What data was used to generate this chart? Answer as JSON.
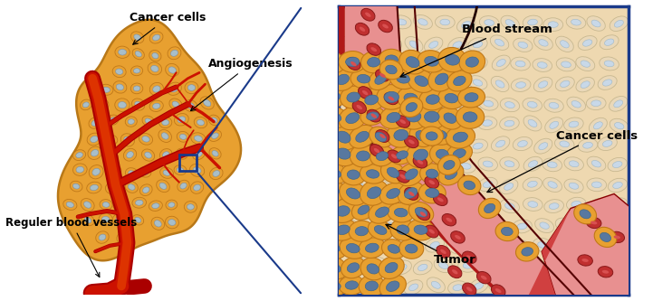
{
  "bg_color": "#ffffff",
  "left_panel": {
    "tumor_color": "#E8A030",
    "tumor_outline": "#B87818",
    "vessel_color_dark": "#AA0000",
    "vessel_color_mid": "#CC1100",
    "vessel_color_light": "#DD3300",
    "cell_outer": "#E8A030",
    "cell_ring": "#C07818",
    "cell_inner": "#A8BEC8",
    "label_cancer_cells": "Cancer cells",
    "label_angiogenesis": "Angiogenesis",
    "label_blood_vessels": "Reguler blood vessels"
  },
  "right_panel": {
    "border_color": "#1a3a8a",
    "bg_tissue_color": "#EED8B0",
    "blood_dark": "#B01818",
    "blood_mid": "#D04040",
    "blood_light": "#E89090",
    "tumor_cell_outer": "#E8A030",
    "tumor_cell_ring": "#C07818",
    "tumor_cell_inner": "#5878A0",
    "normal_cell_outer": "#EAD8B8",
    "normal_cell_ring": "#C8B890",
    "normal_cell_inner": "#C8D8E8",
    "rbc_color": "#C03030",
    "rbc_highlight": "#D85050",
    "label_blood_stream": "Blood stream",
    "label_cancer_cells": "Cancer cells",
    "label_tumor": "Tumor"
  },
  "connector_color": "#1a3a8a",
  "figsize": [
    7.42,
    3.33
  ],
  "dpi": 100
}
